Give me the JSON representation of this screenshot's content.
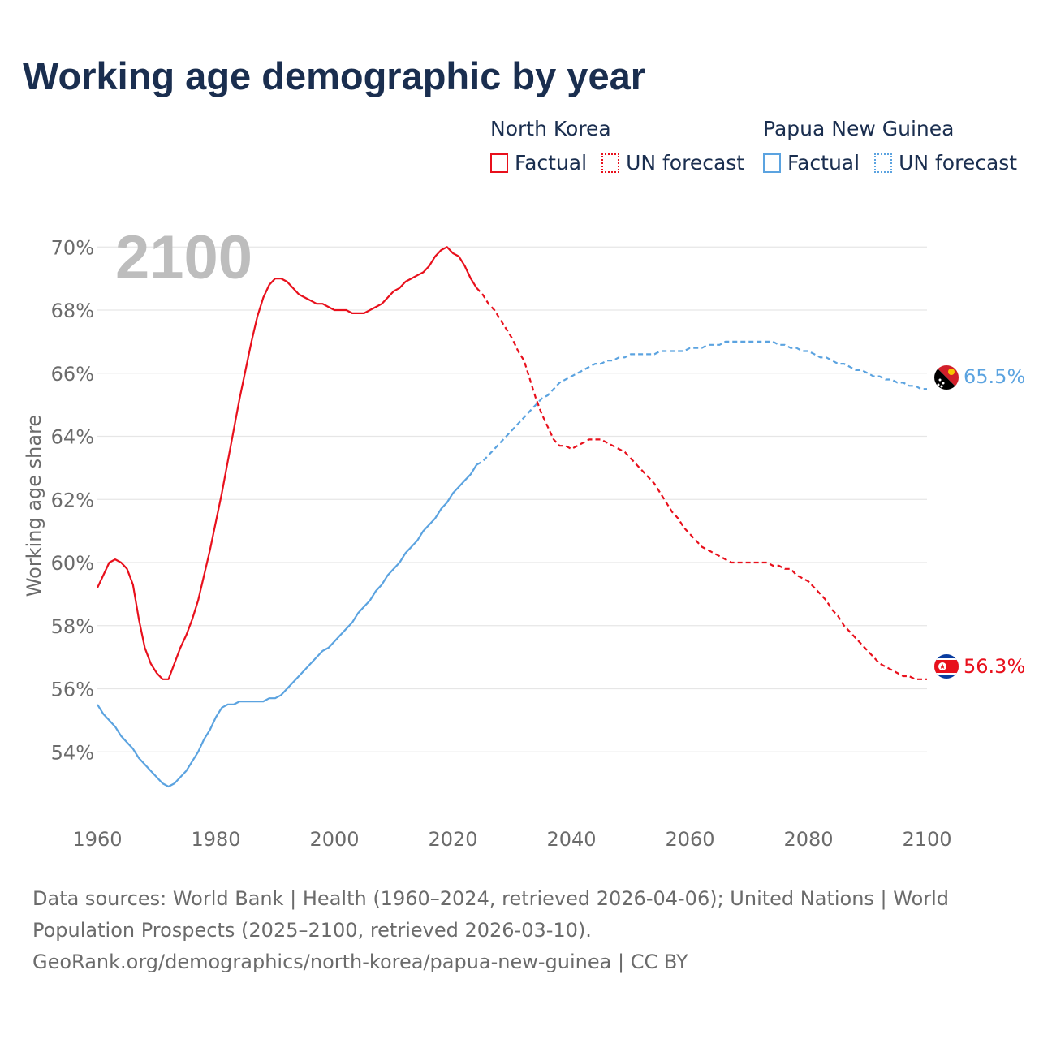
{
  "title": "Working age demographic by year",
  "legend": [
    {
      "name": "North Korea",
      "factual_label": "Factual",
      "forecast_label": "UN forecast",
      "color": "#e8101c"
    },
    {
      "name": "Papua New Guinea",
      "factual_label": "Factual",
      "forecast_label": "UN forecast",
      "color": "#5ba3e0"
    }
  ],
  "year_watermark": "2100",
  "footer": {
    "line1": "Data sources: World Bank | Health (1960–2024, retrieved 2026-04-06); United Nations | World",
    "line2": "Population Prospects (2025–2100, retrieved 2026-03-10).",
    "line3": "GeoRank.org/demographics/north-korea/papua-new-guinea | CC BY"
  },
  "colors": {
    "north_korea": "#e8101c",
    "papua_new_guinea": "#5ba3e0",
    "title": "#1a2e4f",
    "axis_text": "#6b6b6b",
    "grid": "#e6e6e6",
    "watermark": "#bdbdbd"
  },
  "chart_data": {
    "type": "line",
    "title": "Working age demographic by year",
    "xlabel": "",
    "ylabel": "Working age share",
    "xlim": [
      1960,
      2100
    ],
    "ylim": [
      52,
      70.3
    ],
    "x_ticks": [
      1960,
      1980,
      2000,
      2020,
      2040,
      2060,
      2080,
      2100
    ],
    "y_ticks": [
      54,
      56,
      58,
      60,
      62,
      64,
      66,
      68,
      70
    ],
    "y_tick_labels": [
      "54%",
      "56%",
      "58%",
      "60%",
      "62%",
      "64%",
      "66%",
      "68%",
      "70%"
    ],
    "factual_end_year": 2024,
    "series": [
      {
        "name": "North Korea",
        "end_label": "56.3%",
        "points": [
          [
            1960,
            59.2
          ],
          [
            1961,
            59.6
          ],
          [
            1962,
            60.0
          ],
          [
            1963,
            60.1
          ],
          [
            1964,
            60.0
          ],
          [
            1965,
            59.8
          ],
          [
            1966,
            59.3
          ],
          [
            1967,
            58.2
          ],
          [
            1968,
            57.3
          ],
          [
            1969,
            56.8
          ],
          [
            1970,
            56.5
          ],
          [
            1971,
            56.3
          ],
          [
            1972,
            56.3
          ],
          [
            1973,
            56.8
          ],
          [
            1974,
            57.3
          ],
          [
            1975,
            57.7
          ],
          [
            1976,
            58.2
          ],
          [
            1977,
            58.8
          ],
          [
            1978,
            59.6
          ],
          [
            1979,
            60.4
          ],
          [
            1980,
            61.3
          ],
          [
            1981,
            62.2
          ],
          [
            1982,
            63.2
          ],
          [
            1983,
            64.2
          ],
          [
            1984,
            65.2
          ],
          [
            1985,
            66.1
          ],
          [
            1986,
            67.0
          ],
          [
            1987,
            67.8
          ],
          [
            1988,
            68.4
          ],
          [
            1989,
            68.8
          ],
          [
            1990,
            69.0
          ],
          [
            1991,
            69.0
          ],
          [
            1992,
            68.9
          ],
          [
            1993,
            68.7
          ],
          [
            1994,
            68.5
          ],
          [
            1995,
            68.4
          ],
          [
            1996,
            68.3
          ],
          [
            1997,
            68.2
          ],
          [
            1998,
            68.2
          ],
          [
            1999,
            68.1
          ],
          [
            2000,
            68.0
          ],
          [
            2001,
            68.0
          ],
          [
            2002,
            68.0
          ],
          [
            2003,
            67.9
          ],
          [
            2004,
            67.9
          ],
          [
            2005,
            67.9
          ],
          [
            2006,
            68.0
          ],
          [
            2007,
            68.1
          ],
          [
            2008,
            68.2
          ],
          [
            2009,
            68.4
          ],
          [
            2010,
            68.6
          ],
          [
            2011,
            68.7
          ],
          [
            2012,
            68.9
          ],
          [
            2013,
            69.0
          ],
          [
            2014,
            69.1
          ],
          [
            2015,
            69.2
          ],
          [
            2016,
            69.4
          ],
          [
            2017,
            69.7
          ],
          [
            2018,
            69.9
          ],
          [
            2019,
            70.0
          ],
          [
            2020,
            69.8
          ],
          [
            2021,
            69.7
          ],
          [
            2022,
            69.4
          ],
          [
            2023,
            69.0
          ],
          [
            2024,
            68.7
          ],
          [
            2025,
            68.5
          ],
          [
            2026,
            68.2
          ],
          [
            2027,
            68.0
          ],
          [
            2028,
            67.7
          ],
          [
            2029,
            67.4
          ],
          [
            2030,
            67.1
          ],
          [
            2031,
            66.7
          ],
          [
            2032,
            66.4
          ],
          [
            2033,
            65.8
          ],
          [
            2034,
            65.2
          ],
          [
            2035,
            64.7
          ],
          [
            2036,
            64.3
          ],
          [
            2037,
            63.9
          ],
          [
            2038,
            63.7
          ],
          [
            2039,
            63.7
          ],
          [
            2040,
            63.6
          ],
          [
            2041,
            63.7
          ],
          [
            2042,
            63.8
          ],
          [
            2043,
            63.9
          ],
          [
            2044,
            63.9
          ],
          [
            2045,
            63.9
          ],
          [
            2046,
            63.8
          ],
          [
            2047,
            63.7
          ],
          [
            2048,
            63.6
          ],
          [
            2049,
            63.5
          ],
          [
            2050,
            63.3
          ],
          [
            2051,
            63.1
          ],
          [
            2052,
            62.9
          ],
          [
            2053,
            62.7
          ],
          [
            2054,
            62.5
          ],
          [
            2055,
            62.2
          ],
          [
            2056,
            61.9
          ],
          [
            2057,
            61.6
          ],
          [
            2058,
            61.4
          ],
          [
            2059,
            61.1
          ],
          [
            2060,
            60.9
          ],
          [
            2061,
            60.7
          ],
          [
            2062,
            60.5
          ],
          [
            2063,
            60.4
          ],
          [
            2064,
            60.3
          ],
          [
            2065,
            60.2
          ],
          [
            2066,
            60.1
          ],
          [
            2067,
            60.0
          ],
          [
            2068,
            60.0
          ],
          [
            2069,
            60.0
          ],
          [
            2070,
            60.0
          ],
          [
            2071,
            60.0
          ],
          [
            2072,
            60.0
          ],
          [
            2073,
            60.0
          ],
          [
            2074,
            59.9
          ],
          [
            2075,
            59.9
          ],
          [
            2076,
            59.8
          ],
          [
            2077,
            59.8
          ],
          [
            2078,
            59.6
          ],
          [
            2079,
            59.5
          ],
          [
            2080,
            59.4
          ],
          [
            2081,
            59.2
          ],
          [
            2082,
            59.0
          ],
          [
            2083,
            58.8
          ],
          [
            2084,
            58.5
          ],
          [
            2085,
            58.3
          ],
          [
            2086,
            58.0
          ],
          [
            2087,
            57.8
          ],
          [
            2088,
            57.6
          ],
          [
            2089,
            57.4
          ],
          [
            2090,
            57.2
          ],
          [
            2091,
            57.0
          ],
          [
            2092,
            56.8
          ],
          [
            2093,
            56.7
          ],
          [
            2094,
            56.6
          ],
          [
            2095,
            56.5
          ],
          [
            2096,
            56.4
          ],
          [
            2097,
            56.4
          ],
          [
            2098,
            56.3
          ],
          [
            2099,
            56.3
          ],
          [
            2100,
            56.3
          ]
        ]
      },
      {
        "name": "Papua New Guinea",
        "end_label": "65.5%",
        "points": [
          [
            1960,
            55.5
          ],
          [
            1961,
            55.2
          ],
          [
            1962,
            55.0
          ],
          [
            1963,
            54.8
          ],
          [
            1964,
            54.5
          ],
          [
            1965,
            54.3
          ],
          [
            1966,
            54.1
          ],
          [
            1967,
            53.8
          ],
          [
            1968,
            53.6
          ],
          [
            1969,
            53.4
          ],
          [
            1970,
            53.2
          ],
          [
            1971,
            53.0
          ],
          [
            1972,
            52.9
          ],
          [
            1973,
            53.0
          ],
          [
            1974,
            53.2
          ],
          [
            1975,
            53.4
          ],
          [
            1976,
            53.7
          ],
          [
            1977,
            54.0
          ],
          [
            1978,
            54.4
          ],
          [
            1979,
            54.7
          ],
          [
            1980,
            55.1
          ],
          [
            1981,
            55.4
          ],
          [
            1982,
            55.5
          ],
          [
            1983,
            55.5
          ],
          [
            1984,
            55.6
          ],
          [
            1985,
            55.6
          ],
          [
            1986,
            55.6
          ],
          [
            1987,
            55.6
          ],
          [
            1988,
            55.6
          ],
          [
            1989,
            55.7
          ],
          [
            1990,
            55.7
          ],
          [
            1991,
            55.8
          ],
          [
            1992,
            56.0
          ],
          [
            1993,
            56.2
          ],
          [
            1994,
            56.4
          ],
          [
            1995,
            56.6
          ],
          [
            1996,
            56.8
          ],
          [
            1997,
            57.0
          ],
          [
            1998,
            57.2
          ],
          [
            1999,
            57.3
          ],
          [
            2000,
            57.5
          ],
          [
            2001,
            57.7
          ],
          [
            2002,
            57.9
          ],
          [
            2003,
            58.1
          ],
          [
            2004,
            58.4
          ],
          [
            2005,
            58.6
          ],
          [
            2006,
            58.8
          ],
          [
            2007,
            59.1
          ],
          [
            2008,
            59.3
          ],
          [
            2009,
            59.6
          ],
          [
            2010,
            59.8
          ],
          [
            2011,
            60.0
          ],
          [
            2012,
            60.3
          ],
          [
            2013,
            60.5
          ],
          [
            2014,
            60.7
          ],
          [
            2015,
            61.0
          ],
          [
            2016,
            61.2
          ],
          [
            2017,
            61.4
          ],
          [
            2018,
            61.7
          ],
          [
            2019,
            61.9
          ],
          [
            2020,
            62.2
          ],
          [
            2021,
            62.4
          ],
          [
            2022,
            62.6
          ],
          [
            2023,
            62.8
          ],
          [
            2024,
            63.1
          ],
          [
            2025,
            63.2
          ],
          [
            2026,
            63.4
          ],
          [
            2027,
            63.6
          ],
          [
            2028,
            63.8
          ],
          [
            2029,
            64.0
          ],
          [
            2030,
            64.2
          ],
          [
            2031,
            64.4
          ],
          [
            2032,
            64.6
          ],
          [
            2033,
            64.8
          ],
          [
            2034,
            65.0
          ],
          [
            2035,
            65.2
          ],
          [
            2036,
            65.3
          ],
          [
            2037,
            65.5
          ],
          [
            2038,
            65.7
          ],
          [
            2039,
            65.8
          ],
          [
            2040,
            65.9
          ],
          [
            2041,
            66.0
          ],
          [
            2042,
            66.1
          ],
          [
            2043,
            66.2
          ],
          [
            2044,
            66.3
          ],
          [
            2045,
            66.3
          ],
          [
            2046,
            66.4
          ],
          [
            2047,
            66.4
          ],
          [
            2048,
            66.5
          ],
          [
            2049,
            66.5
          ],
          [
            2050,
            66.6
          ],
          [
            2051,
            66.6
          ],
          [
            2052,
            66.6
          ],
          [
            2053,
            66.6
          ],
          [
            2054,
            66.6
          ],
          [
            2055,
            66.7
          ],
          [
            2056,
            66.7
          ],
          [
            2057,
            66.7
          ],
          [
            2058,
            66.7
          ],
          [
            2059,
            66.7
          ],
          [
            2060,
            66.8
          ],
          [
            2061,
            66.8
          ],
          [
            2062,
            66.8
          ],
          [
            2063,
            66.9
          ],
          [
            2064,
            66.9
          ],
          [
            2065,
            66.9
          ],
          [
            2066,
            67.0
          ],
          [
            2067,
            67.0
          ],
          [
            2068,
            67.0
          ],
          [
            2069,
            67.0
          ],
          [
            2070,
            67.0
          ],
          [
            2071,
            67.0
          ],
          [
            2072,
            67.0
          ],
          [
            2073,
            67.0
          ],
          [
            2074,
            67.0
          ],
          [
            2075,
            66.9
          ],
          [
            2076,
            66.9
          ],
          [
            2077,
            66.8
          ],
          [
            2078,
            66.8
          ],
          [
            2079,
            66.7
          ],
          [
            2080,
            66.7
          ],
          [
            2081,
            66.6
          ],
          [
            2082,
            66.5
          ],
          [
            2083,
            66.5
          ],
          [
            2084,
            66.4
          ],
          [
            2085,
            66.3
          ],
          [
            2086,
            66.3
          ],
          [
            2087,
            66.2
          ],
          [
            2088,
            66.1
          ],
          [
            2089,
            66.1
          ],
          [
            2090,
            66.0
          ],
          [
            2091,
            65.9
          ],
          [
            2092,
            65.9
          ],
          [
            2093,
            65.8
          ],
          [
            2094,
            65.8
          ],
          [
            2095,
            65.7
          ],
          [
            2096,
            65.7
          ],
          [
            2097,
            65.6
          ],
          [
            2098,
            65.6
          ],
          [
            2099,
            65.5
          ],
          [
            2100,
            65.5
          ]
        ]
      }
    ]
  }
}
